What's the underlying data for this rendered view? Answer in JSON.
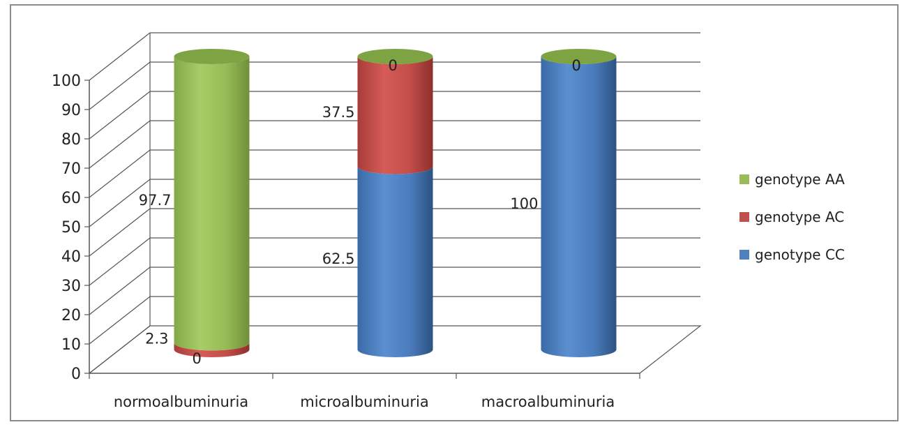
{
  "chart_data": {
    "type": "bar",
    "subtype": "stacked-100-3d-cylinder",
    "categories": [
      "normoalbuminuria",
      "microalbuminuria",
      "macroalbuminuria"
    ],
    "series": [
      {
        "name": "genotype CC",
        "values": [
          0,
          62.5,
          100
        ],
        "labels": [
          "0",
          "62.5",
          "100"
        ],
        "color": "#4f81bd"
      },
      {
        "name": "genotype AC",
        "values": [
          2.3,
          37.5,
          0
        ],
        "labels": [
          "2.3",
          "37.5",
          "0"
        ],
        "color": "#c0504d"
      },
      {
        "name": "genotype AA",
        "values": [
          97.7,
          0,
          0
        ],
        "labels": [
          "97.7",
          "0",
          "0"
        ],
        "color": "#9bbb59"
      }
    ],
    "yticks": [
      0,
      10,
      20,
      30,
      40,
      50,
      60,
      70,
      80,
      90,
      100
    ],
    "ylim": [
      0,
      100
    ],
    "grid": true,
    "legend_position": "right",
    "title": "",
    "xlabel": "",
    "ylabel": ""
  }
}
